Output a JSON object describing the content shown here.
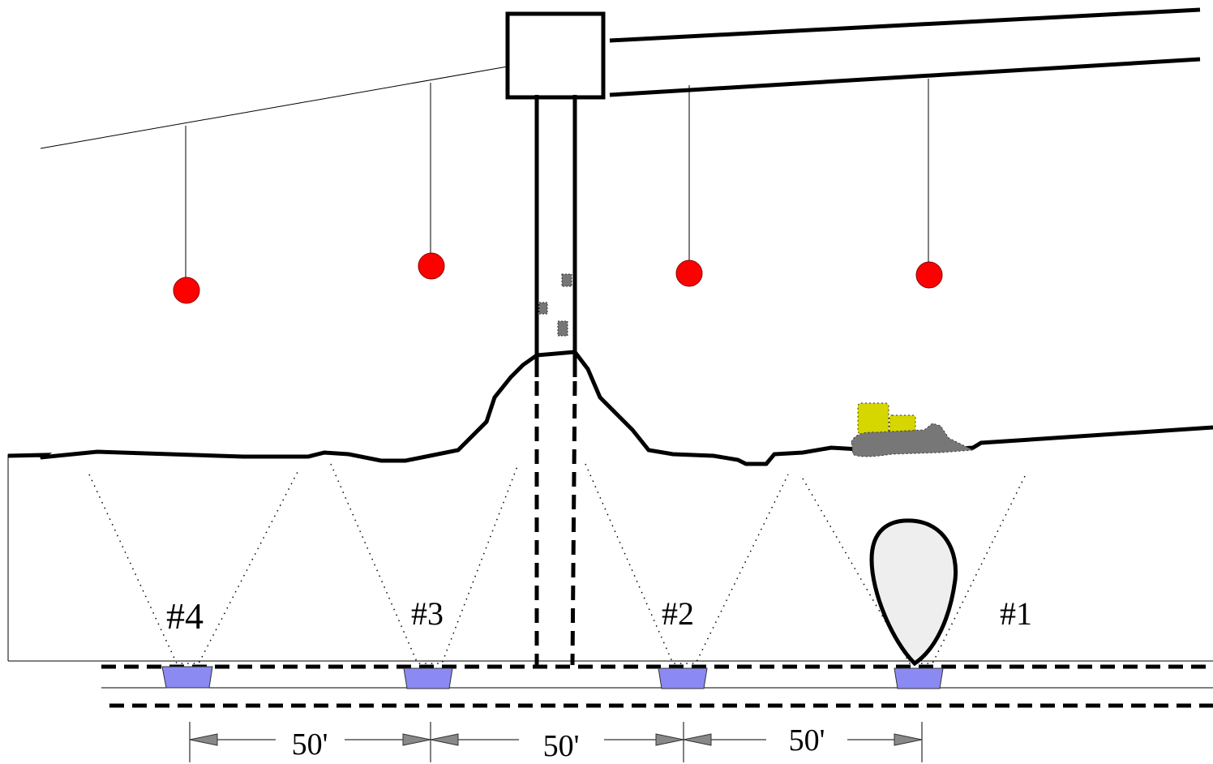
{
  "sensors": [
    {
      "label": "#4"
    },
    {
      "label": "#3"
    },
    {
      "label": "#2"
    },
    {
      "label": "#1"
    }
  ],
  "dimensions": [
    {
      "label": "50'"
    },
    {
      "label": "50'"
    },
    {
      "label": "50'"
    }
  ]
}
